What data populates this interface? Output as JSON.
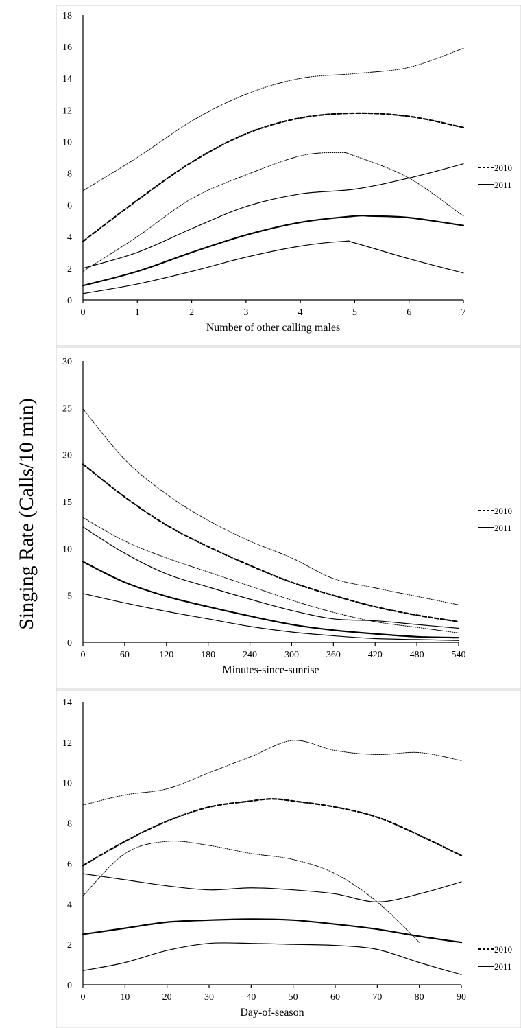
{
  "y_label": "Singing Rate (Calls/10 min)",
  "chart_data": [
    {
      "type": "line",
      "xlabel": "Number of other calling males",
      "ylabel": "",
      "xlim": [
        0,
        7
      ],
      "ylim": [
        0,
        18
      ],
      "x_ticks": [
        0,
        1,
        2,
        3,
        4,
        5,
        6,
        7
      ],
      "y_ticks": [
        0,
        2,
        4,
        6,
        8,
        10,
        12,
        14,
        16,
        18
      ],
      "legend": [
        "2010",
        "2011"
      ],
      "series": [
        {
          "name": "2010",
          "style": "dashed",
          "x": [
            0,
            1,
            2,
            3,
            4,
            5,
            6,
            7
          ],
          "values": [
            3.7,
            6.3,
            8.7,
            10.5,
            11.5,
            11.8,
            11.6,
            10.9
          ]
        },
        {
          "style": "dotted",
          "x": [
            0,
            1,
            2,
            3,
            4,
            5,
            6,
            7
          ],
          "values": [
            6.9,
            9.0,
            11.3,
            13.0,
            14.0,
            14.3,
            14.7,
            15.9
          ]
        },
        {
          "style": "dotted",
          "x": [
            0,
            1,
            2,
            3,
            4,
            4.7,
            5,
            6,
            7
          ],
          "values": [
            1.8,
            4.0,
            6.4,
            7.9,
            9.1,
            9.3,
            9.1,
            7.7,
            5.3
          ]
        },
        {
          "name": "2011",
          "style": "solid-thick",
          "x": [
            0,
            1,
            2,
            3,
            4,
            5,
            5.3,
            6,
            7
          ],
          "values": [
            0.9,
            1.8,
            3.0,
            4.1,
            4.9,
            5.3,
            5.3,
            5.2,
            4.7
          ]
        },
        {
          "style": "solid",
          "x": [
            0,
            1,
            2,
            3,
            4,
            5,
            6,
            7
          ],
          "values": [
            2.0,
            3.0,
            4.5,
            5.9,
            6.7,
            7.0,
            7.7,
            8.6
          ]
        },
        {
          "style": "solid",
          "x": [
            0,
            1,
            2,
            3,
            4,
            4.8,
            5,
            6,
            7
          ],
          "values": [
            0.4,
            1.0,
            1.8,
            2.7,
            3.4,
            3.7,
            3.6,
            2.6,
            1.7
          ]
        }
      ]
    },
    {
      "type": "line",
      "xlabel": "Minutes-since-sunrise",
      "ylabel": "",
      "xlim": [
        0,
        540
      ],
      "ylim": [
        0,
        30
      ],
      "x_ticks": [
        0,
        60,
        120,
        180,
        240,
        300,
        360,
        420,
        480,
        540
      ],
      "y_ticks": [
        0,
        5,
        10,
        15,
        20,
        25,
        30
      ],
      "legend": [
        "2010",
        "2011"
      ],
      "series": [
        {
          "name": "2010",
          "style": "dashed",
          "x": [
            0,
            60,
            120,
            180,
            240,
            300,
            360,
            420,
            480,
            540
          ],
          "values": [
            19.0,
            15.5,
            12.5,
            10.2,
            8.2,
            6.4,
            5.0,
            3.8,
            2.9,
            2.2
          ]
        },
        {
          "style": "dotted",
          "x": [
            0,
            60,
            120,
            180,
            240,
            300,
            360,
            420,
            480,
            540
          ],
          "values": [
            24.9,
            19.5,
            15.8,
            13.0,
            10.8,
            9.0,
            6.8,
            5.8,
            4.9,
            4.0
          ]
        },
        {
          "style": "dotted",
          "x": [
            0,
            60,
            120,
            180,
            240,
            300,
            360,
            420,
            480,
            540
          ],
          "values": [
            13.3,
            10.8,
            9.0,
            7.5,
            6.0,
            4.5,
            3.2,
            2.2,
            1.6,
            1.0
          ]
        },
        {
          "name": "2011",
          "style": "solid-thick",
          "x": [
            0,
            60,
            120,
            180,
            240,
            300,
            360,
            420,
            480,
            540
          ],
          "values": [
            8.6,
            6.4,
            4.9,
            3.8,
            2.8,
            1.9,
            1.3,
            0.9,
            0.6,
            0.5
          ]
        },
        {
          "style": "solid",
          "x": [
            0,
            60,
            120,
            180,
            240,
            300,
            360,
            420,
            480,
            540
          ],
          "values": [
            12.3,
            9.5,
            7.3,
            5.9,
            4.6,
            3.4,
            2.5,
            2.3,
            1.9,
            1.5
          ]
        },
        {
          "style": "solid",
          "x": [
            0,
            60,
            120,
            180,
            240,
            300,
            360,
            420,
            480,
            540
          ],
          "values": [
            5.2,
            4.2,
            3.3,
            2.5,
            1.7,
            1.1,
            0.7,
            0.4,
            0.3,
            0.2
          ]
        }
      ]
    },
    {
      "type": "line",
      "xlabel": "Day-of-season",
      "ylabel": "",
      "xlim": [
        0,
        90
      ],
      "ylim": [
        0,
        14
      ],
      "x_ticks": [
        0,
        10,
        20,
        30,
        40,
        50,
        60,
        70,
        80,
        90
      ],
      "y_ticks": [
        0,
        2,
        4,
        6,
        8,
        10,
        12,
        14
      ],
      "legend": [
        "2010",
        "2011"
      ],
      "series": [
        {
          "name": "2010",
          "style": "dashed",
          "x": [
            0,
            10,
            20,
            30,
            40,
            45,
            50,
            60,
            70,
            80,
            90
          ],
          "values": [
            5.9,
            7.1,
            8.1,
            8.8,
            9.1,
            9.2,
            9.1,
            8.8,
            8.3,
            7.4,
            6.4
          ]
        },
        {
          "style": "dotted",
          "x": [
            0,
            10,
            20,
            30,
            40,
            50,
            60,
            70,
            80,
            90
          ],
          "values": [
            8.9,
            9.4,
            9.7,
            10.5,
            11.3,
            12.1,
            11.6,
            11.4,
            11.5,
            11.1
          ]
        },
        {
          "style": "dotted",
          "x": [
            0,
            10,
            20,
            30,
            40,
            50,
            60,
            70,
            80
          ],
          "values": [
            4.4,
            6.5,
            7.1,
            6.9,
            6.5,
            6.2,
            5.5,
            4.1,
            2.1
          ]
        },
        {
          "name": "2011",
          "style": "solid-thick",
          "x": [
            0,
            10,
            20,
            30,
            40,
            50,
            60,
            70,
            80,
            90
          ],
          "values": [
            2.5,
            2.8,
            3.1,
            3.2,
            3.25,
            3.2,
            3.0,
            2.75,
            2.4,
            2.1
          ]
        },
        {
          "style": "solid",
          "x": [
            0,
            10,
            20,
            30,
            40,
            50,
            60,
            70,
            80,
            90
          ],
          "values": [
            5.5,
            5.2,
            4.9,
            4.7,
            4.8,
            4.7,
            4.5,
            4.1,
            4.5,
            5.1
          ]
        },
        {
          "style": "solid",
          "x": [
            0,
            10,
            20,
            30,
            40,
            50,
            60,
            70,
            80,
            90
          ],
          "values": [
            0.7,
            1.1,
            1.7,
            2.05,
            2.05,
            2.0,
            1.95,
            1.75,
            1.1,
            0.5
          ]
        }
      ]
    }
  ]
}
